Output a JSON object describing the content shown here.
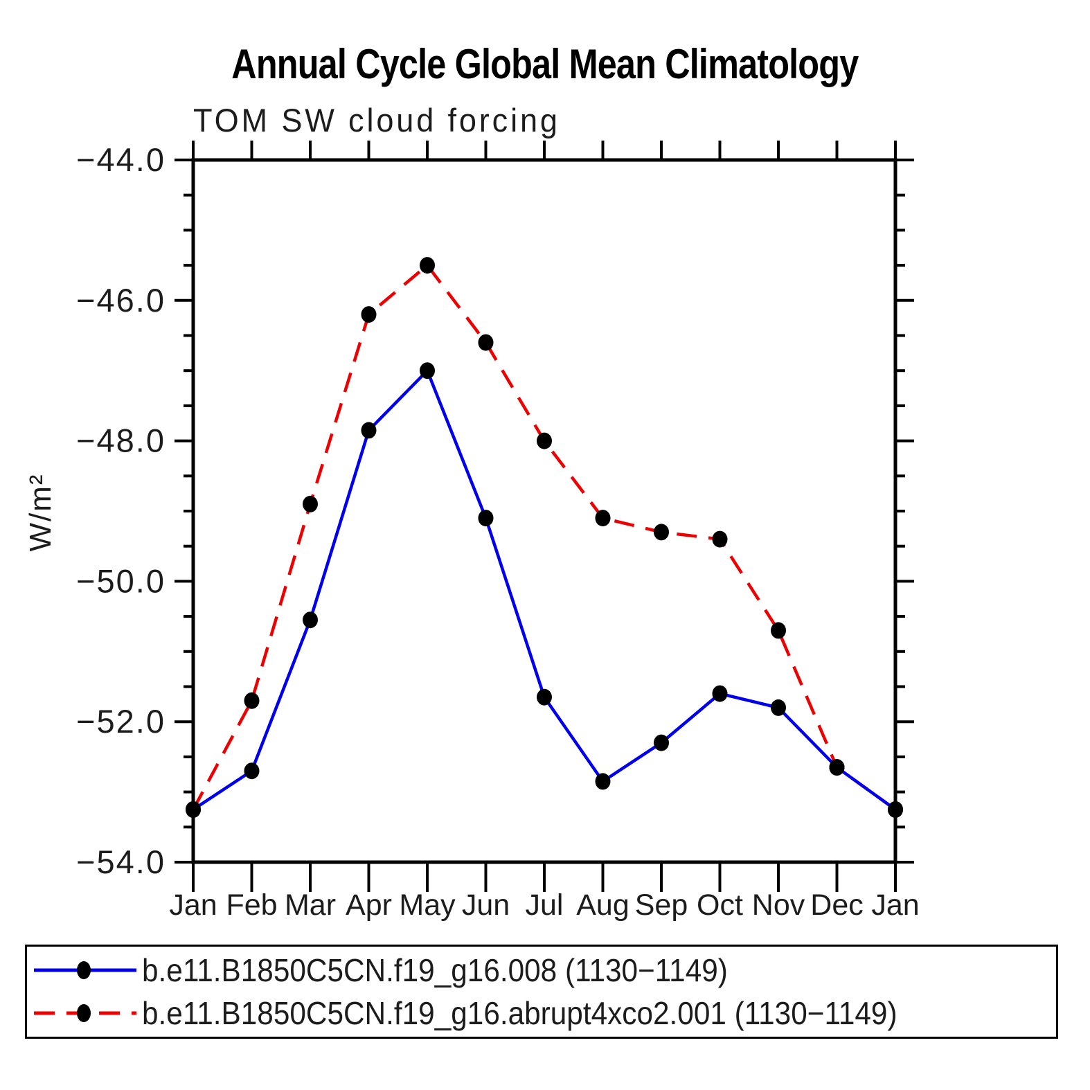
{
  "title": "Annual Cycle Global Mean Climatology",
  "chart_data": {
    "type": "line",
    "title": "Annual Cycle Global Mean Climatology",
    "subtitle": "TOM SW cloud forcing",
    "ylabel": "W/m²",
    "xlabel": "",
    "categories": [
      "Jan",
      "Feb",
      "Mar",
      "Apr",
      "May",
      "Jun",
      "Jul",
      "Aug",
      "Sep",
      "Oct",
      "Nov",
      "Dec",
      "Jan"
    ],
    "ylim": [
      -54.0,
      -44.0
    ],
    "ytick_major_values": [
      -44.0,
      -46.0,
      -48.0,
      -50.0,
      -52.0,
      -54.0
    ],
    "ytick_major_labels": [
      "−44.0",
      "−46.0",
      "−48.0",
      "−50.0",
      "−52.0",
      "−54.0"
    ],
    "ytick_minor_step": 0.5,
    "grid": false,
    "frame_color": "#000000",
    "legend_position": "bottom",
    "series": [
      {
        "name": "b.e11.B1850C5CN.f19_g16.008 (1130−1149)",
        "color": "#0000ee",
        "line_style": "solid",
        "marker": "filled-circle",
        "marker_color": "#000000",
        "values": [
          -53.25,
          -52.7,
          -50.55,
          -47.85,
          -47.0,
          -49.1,
          -51.65,
          -52.85,
          -52.3,
          -51.6,
          -51.8,
          -52.65,
          -53.25
        ]
      },
      {
        "name": "b.e11.B1850C5CN.f19_g16.abrupt4xco2.001 (1130−1149)",
        "color": "#ee0000",
        "line_style": "dashed",
        "marker": "filled-circle",
        "marker_color": "#000000",
        "values": [
          -53.25,
          -51.7,
          -48.9,
          -46.2,
          -45.5,
          -46.6,
          -48.0,
          -49.1,
          -49.3,
          -49.4,
          -50.7,
          -52.65,
          -53.25
        ]
      }
    ]
  }
}
